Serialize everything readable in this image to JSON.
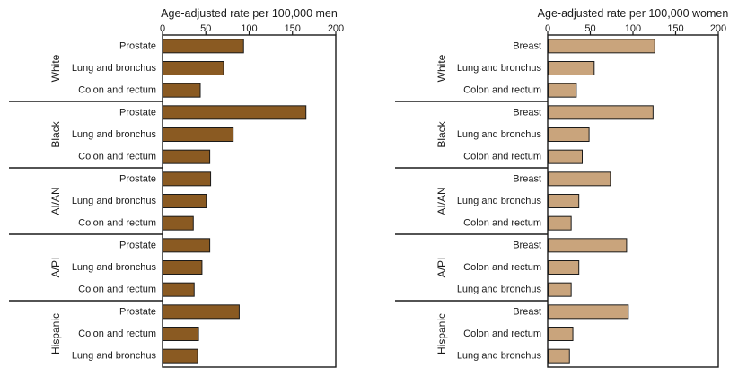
{
  "chart_data": [
    {
      "type": "bar",
      "orientation": "horizontal",
      "xlabel": "Age-adjusted rate per 100,000 men",
      "xlim": [
        0,
        200
      ],
      "xticks": [
        0,
        50,
        100,
        150,
        200
      ],
      "bar_color": "#8a5a22",
      "grid": false,
      "groups": [
        {
          "name": "White",
          "bars": [
            {
              "label": "Prostate",
              "value": 93
            },
            {
              "label": "Lung and bronchus",
              "value": 70
            },
            {
              "label": "Colon and rectum",
              "value": 43
            }
          ]
        },
        {
          "name": "Black",
          "bars": [
            {
              "label": "Prostate",
              "value": 165
            },
            {
              "label": "Lung and bronchus",
              "value": 81
            },
            {
              "label": "Colon and rectum",
              "value": 54
            }
          ]
        },
        {
          "name": "AI/AN",
          "bars": [
            {
              "label": "Prostate",
              "value": 55
            },
            {
              "label": "Lung and bronchus",
              "value": 50
            },
            {
              "label": "Colon and rectum",
              "value": 35
            }
          ]
        },
        {
          "name": "A/PI",
          "bars": [
            {
              "label": "Prostate",
              "value": 54
            },
            {
              "label": "Lung and bronchus",
              "value": 45
            },
            {
              "label": "Colon and rectum",
              "value": 36
            }
          ]
        },
        {
          "name": "Hispanic",
          "bars": [
            {
              "label": "Prostate",
              "value": 88
            },
            {
              "label": "Colon and rectum",
              "value": 41
            },
            {
              "label": "Lung and bronchus",
              "value": 40
            }
          ]
        }
      ]
    },
    {
      "type": "bar",
      "orientation": "horizontal",
      "xlabel": "Age-adjusted rate per 100,000 women",
      "xlim": [
        0,
        200
      ],
      "xticks": [
        0,
        50,
        100,
        150,
        200
      ],
      "bar_color": "#c9a47c",
      "grid": false,
      "groups": [
        {
          "name": "White",
          "bars": [
            {
              "label": "Breast",
              "value": 125
            },
            {
              "label": "Lung and bronchus",
              "value": 54
            },
            {
              "label": "Colon and rectum",
              "value": 33
            }
          ]
        },
        {
          "name": "Black",
          "bars": [
            {
              "label": "Breast",
              "value": 123
            },
            {
              "label": "Lung and bronchus",
              "value": 48
            },
            {
              "label": "Colon and rectum",
              "value": 40
            }
          ]
        },
        {
          "name": "AI/AN",
          "bars": [
            {
              "label": "Breast",
              "value": 73
            },
            {
              "label": "Lung and bronchus",
              "value": 36
            },
            {
              "label": "Colon and rectum",
              "value": 27
            }
          ]
        },
        {
          "name": "A/PI",
          "bars": [
            {
              "label": "Breast",
              "value": 92
            },
            {
              "label": "Colon and rectum",
              "value": 36
            },
            {
              "label": "Lung and bronchus",
              "value": 27
            }
          ]
        },
        {
          "name": "Hispanic",
          "bars": [
            {
              "label": "Breast",
              "value": 94
            },
            {
              "label": "Colon and rectum",
              "value": 29
            },
            {
              "label": "Lung and bronchus",
              "value": 25
            }
          ]
        }
      ]
    }
  ]
}
